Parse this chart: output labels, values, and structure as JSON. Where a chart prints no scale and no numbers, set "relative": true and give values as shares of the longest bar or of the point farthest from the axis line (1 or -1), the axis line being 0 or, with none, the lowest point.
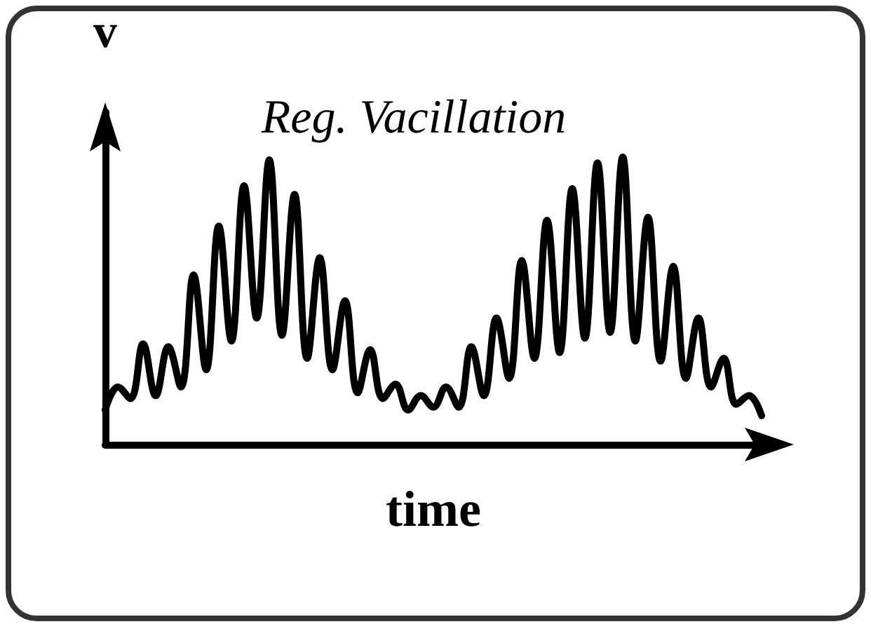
{
  "chart_data": {
    "type": "line",
    "title": "Reg. Vacillation",
    "xlabel": "time",
    "ylabel": "v",
    "relative": true,
    "grid": false,
    "line_style": "solid",
    "categories": [
      null,
      null,
      null,
      null,
      null,
      null,
      null,
      null,
      null,
      null,
      null,
      null,
      null,
      null,
      null,
      null,
      null,
      null,
      null,
      null,
      null,
      null,
      null,
      null,
      null,
      null,
      null,
      null,
      null,
      null,
      null,
      null,
      null,
      null,
      null,
      null,
      null,
      null,
      null,
      null,
      null,
      null,
      null,
      null,
      null,
      null,
      null,
      null,
      null,
      null,
      null,
      null,
      null
    ],
    "series": [
      {
        "color": "#000000",
        "values": [
          0.12,
          0.2,
          0.16,
          0.35,
          0.17,
          0.34,
          0.2,
          0.59,
          0.26,
          0.76,
          0.36,
          0.9,
          0.44,
          0.99,
          0.38,
          0.87,
          0.3,
          0.65,
          0.26,
          0.5,
          0.18,
          0.33,
          0.16,
          0.21,
          0.12,
          0.17,
          0.13,
          0.2,
          0.13,
          0.34,
          0.17,
          0.44,
          0.23,
          0.64,
          0.3,
          0.78,
          0.32,
          0.89,
          0.37,
          0.98,
          0.39,
          1,
          0.36,
          0.79,
          0.29,
          0.62,
          0.23,
          0.44,
          0.2,
          0.3,
          0.14,
          0.17,
          0.1
        ]
      }
    ]
  }
}
